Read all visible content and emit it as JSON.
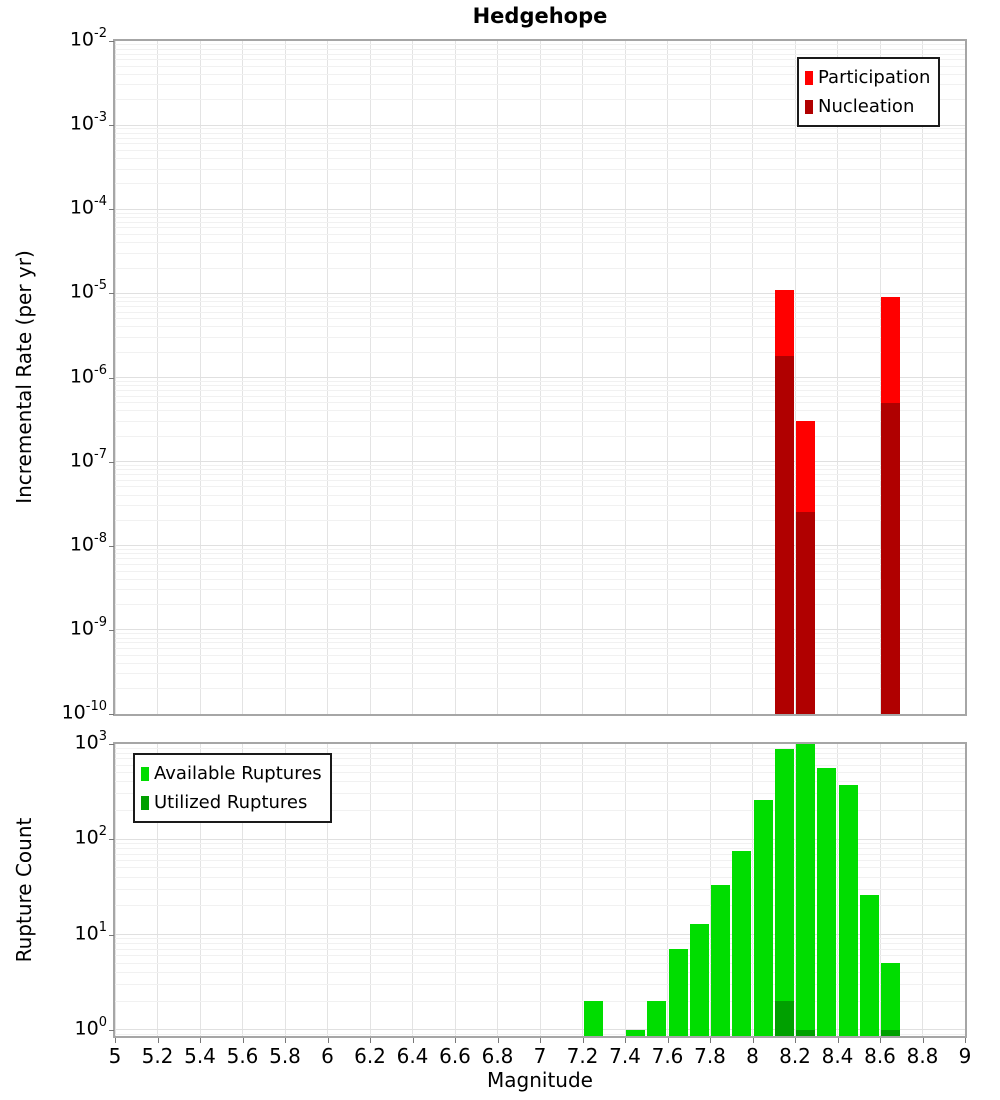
{
  "title": "Hedgehope",
  "xlabel": "Magnitude",
  "x_tick_labels": [
    "5",
    "5.2",
    "5.4",
    "5.6",
    "5.8",
    "6",
    "6.2",
    "6.4",
    "6.6",
    "6.8",
    "7",
    "7.2",
    "7.4",
    "7.6",
    "7.8",
    "8",
    "8.2",
    "8.4",
    "8.6",
    "8.8",
    "9"
  ],
  "colors": {
    "participation": "#FF0000",
    "nucleation": "#B00000",
    "available": "#00DD00",
    "utilized": "#00A000",
    "grid_major": "#E0E0E0",
    "grid_minor": "#F1F1F1",
    "panel_border": "#A6A6A6"
  },
  "chart_data": [
    {
      "id": "rate",
      "type": "bar",
      "title": "Hedgehope",
      "ylabel": "Incremental Rate (per yr)",
      "xlabel": "Magnitude",
      "xlim": [
        5,
        9
      ],
      "ylim": [
        1e-10,
        0.01
      ],
      "x_bin_width": 0.1,
      "grid": true,
      "yticks_exp": [
        -2,
        -3,
        -4,
        -5,
        -6,
        -7,
        -8,
        -9,
        -10
      ],
      "legend": {
        "position": "top-right",
        "entries": [
          {
            "label": "Participation",
            "color": "#FF0000"
          },
          {
            "label": "Nucleation",
            "color": "#B00000"
          }
        ]
      },
      "series": [
        {
          "name": "Participation",
          "color": "#FF0000",
          "points": [
            {
              "x": 8.15,
              "y": 1.1e-05
            },
            {
              "x": 8.25,
              "y": 3e-07
            },
            {
              "x": 8.65,
              "y": 9e-06
            }
          ]
        },
        {
          "name": "Nucleation",
          "color": "#B00000",
          "points": [
            {
              "x": 8.15,
              "y": 1.8e-06
            },
            {
              "x": 8.25,
              "y": 2.5e-08
            },
            {
              "x": 8.65,
              "y": 5e-07
            }
          ]
        }
      ]
    },
    {
      "id": "count",
      "type": "bar",
      "title": "",
      "ylabel": "Rupture Count",
      "xlabel": "Magnitude",
      "xlim": [
        5,
        9
      ],
      "ylim": [
        1,
        1000
      ],
      "x_bin_width": 0.1,
      "grid": true,
      "yticks_exp": [
        3,
        2,
        1,
        0
      ],
      "legend": {
        "position": "top-left",
        "entries": [
          {
            "label": "Available Ruptures",
            "color": "#00DD00"
          },
          {
            "label": "Utilized Ruptures",
            "color": "#00A000"
          }
        ]
      },
      "series": [
        {
          "name": "Available Ruptures",
          "color": "#00DD00",
          "points": [
            {
              "x": 7.25,
              "y": 2
            },
            {
              "x": 7.45,
              "y": 1
            },
            {
              "x": 7.55,
              "y": 2
            },
            {
              "x": 7.65,
              "y": 7
            },
            {
              "x": 7.75,
              "y": 13
            },
            {
              "x": 7.85,
              "y": 33
            },
            {
              "x": 7.95,
              "y": 75
            },
            {
              "x": 8.05,
              "y": 260
            },
            {
              "x": 8.15,
              "y": 890
            },
            {
              "x": 8.25,
              "y": 1000
            },
            {
              "x": 8.35,
              "y": 560
            },
            {
              "x": 8.45,
              "y": 370
            },
            {
              "x": 8.55,
              "y": 26
            },
            {
              "x": 8.65,
              "y": 5
            }
          ]
        },
        {
          "name": "Utilized Ruptures",
          "color": "#00A000",
          "points": [
            {
              "x": 8.15,
              "y": 2
            },
            {
              "x": 8.25,
              "y": 1
            },
            {
              "x": 8.65,
              "y": 1
            }
          ]
        }
      ]
    }
  ]
}
